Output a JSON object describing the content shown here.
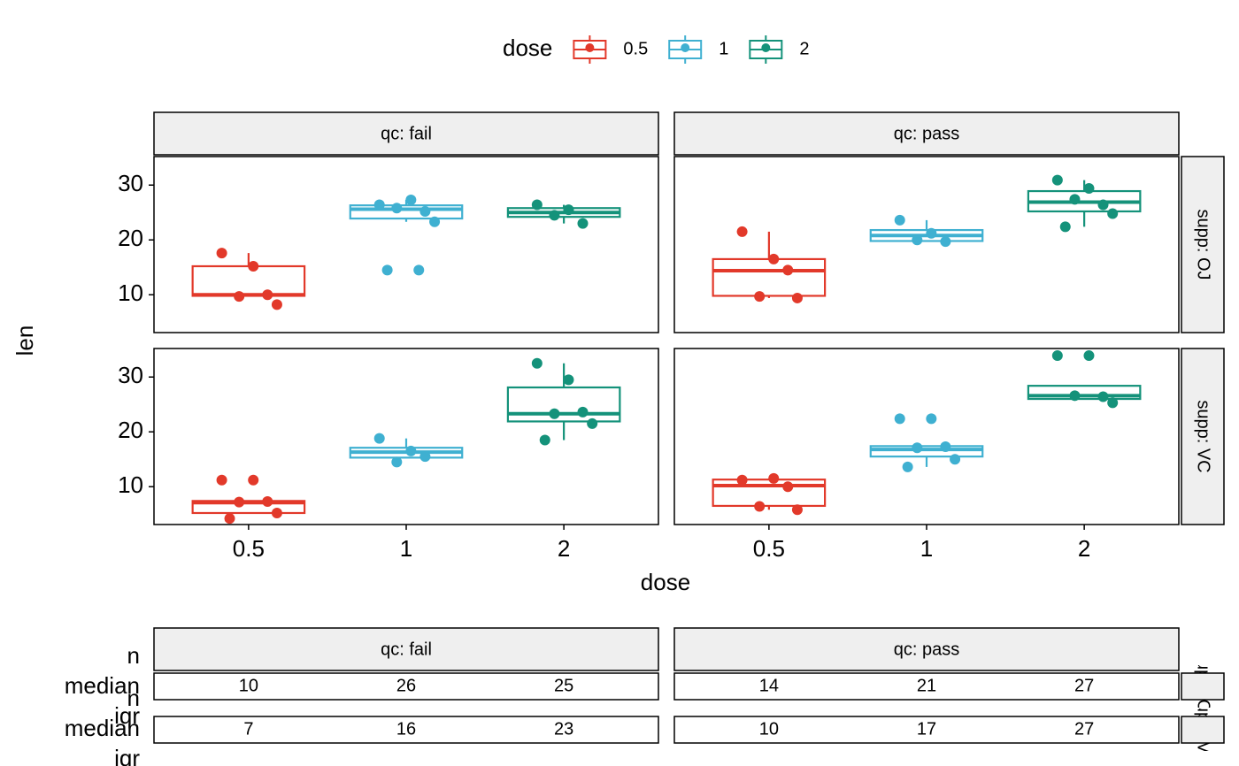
{
  "chart_data": {
    "type": "box",
    "legend_title": "dose",
    "legend_position": "top",
    "series": [
      {
        "name": "0.5",
        "color": "#e2392a"
      },
      {
        "name": "1",
        "color": "#3fb0d1"
      },
      {
        "name": "2",
        "color": "#14927a"
      }
    ],
    "categories": [
      "0.5",
      "1",
      "2"
    ],
    "x_label": "dose",
    "y_label": "len",
    "col_facets": [
      "qc: fail",
      "qc: pass"
    ],
    "row_facets": [
      "supp: OJ",
      "supp: VC"
    ],
    "ylim": [
      3.1,
      35.2
    ],
    "yticks": [
      10,
      20,
      30
    ],
    "panels": [
      [
        [
          {
            "min": 9.7,
            "q1": 9.8,
            "median": 10,
            "q3": 15.2,
            "max": 17.6,
            "points": [
              17.6,
              15.2,
              10.0,
              9.7,
              8.2
            ]
          },
          {
            "min": 23.3,
            "q1": 23.9,
            "median": 25.6,
            "q3": 26.3,
            "max": 27.3,
            "points": [
              26.4,
              27.3,
              25.2,
              25.8,
              23.3,
              14.5,
              14.5
            ]
          },
          {
            "min": 23.0,
            "q1": 24.2,
            "median": 25.0,
            "q3": 25.8,
            "max": 26.4,
            "points": [
              26.4,
              25.5,
              23.0,
              24.5
            ]
          }
        ],
        [
          {
            "min": 9.4,
            "q1": 9.8,
            "median": 14.4,
            "q3": 16.5,
            "max": 21.5,
            "points": [
              21.5,
              16.5,
              14.5,
              9.7,
              9.4
            ]
          },
          {
            "min": 19.7,
            "q1": 19.8,
            "median": 20.8,
            "q3": 21.8,
            "max": 23.6,
            "points": [
              23.6,
              21.2,
              19.7,
              20.0
            ]
          },
          {
            "min": 22.4,
            "q1": 25.2,
            "median": 26.9,
            "q3": 28.9,
            "max": 30.9,
            "points": [
              30.9,
              29.4,
              26.4,
              27.4,
              24.8,
              22.4
            ]
          }
        ]
      ],
      [
        [
          {
            "min": 5.2,
            "q1": 5.2,
            "median": 7.1,
            "q3": 7.4,
            "max": 7.4,
            "points": [
              11.2,
              11.2,
              7.3,
              7.2,
              5.2,
              4.2
            ]
          },
          {
            "min": 15.3,
            "q1": 15.3,
            "median": 16.3,
            "q3": 17.1,
            "max": 18.8,
            "points": [
              18.8,
              16.5,
              15.5,
              14.5
            ]
          },
          {
            "min": 18.5,
            "q1": 21.9,
            "median": 23.3,
            "q3": 28.1,
            "max": 32.5,
            "points": [
              32.5,
              29.5,
              23.6,
              23.3,
              21.5,
              18.5
            ]
          }
        ],
        [
          {
            "min": 5.8,
            "q1": 6.5,
            "median": 10.2,
            "q3": 11.3,
            "max": 11.5,
            "points": [
              11.2,
              11.5,
              10.0,
              6.4,
              5.8
            ]
          },
          {
            "min": 13.6,
            "q1": 15.5,
            "median": 16.8,
            "q3": 17.4,
            "max": 17.4,
            "points": [
              22.4,
              22.4,
              17.3,
              17.1,
              15.0,
              13.6
            ]
          },
          {
            "min": 26.0,
            "q1": 26.0,
            "median": 26.6,
            "q3": 28.4,
            "max": 28.4,
            "points": [
              33.9,
              33.9,
              26.4,
              26.6,
              25.3
            ]
          }
        ]
      ]
    ]
  },
  "table": {
    "row_labels": [
      "n",
      "median",
      "iqr"
    ],
    "values": [
      [
        [
          10,
          26,
          25
        ],
        [
          14,
          21,
          27
        ]
      ],
      [
        [
          7,
          16,
          23
        ],
        [
          10,
          17,
          27
        ]
      ]
    ]
  }
}
